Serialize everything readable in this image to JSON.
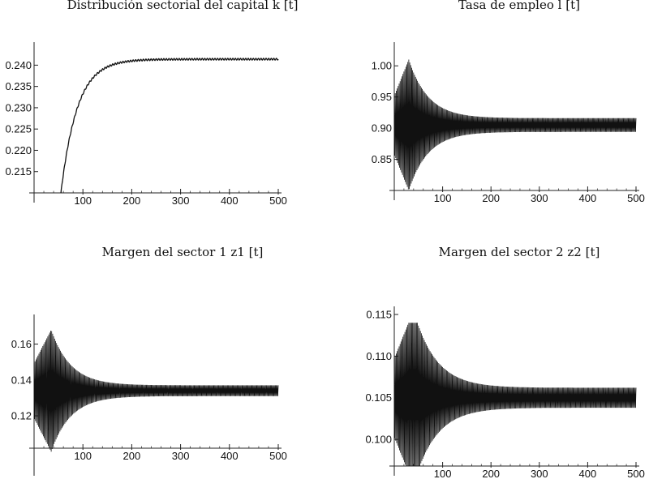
{
  "chart_data": [
    {
      "type": "line",
      "title": "Distribución sectorial del capital k [t]",
      "xlabel": "",
      "ylabel": "",
      "xlim": [
        0,
        500
      ],
      "ylim": [
        0.21,
        0.2435
      ],
      "xticks": [
        100,
        200,
        300,
        400,
        500
      ],
      "yticks": [
        0.215,
        0.22,
        0.225,
        0.23,
        0.235,
        0.24
      ],
      "ytick_labels": [
        "0.215",
        "0.220",
        "0.225",
        "0.230",
        "0.235",
        "0.240"
      ],
      "grid": false,
      "series": [
        {
          "kind": "rise",
          "x_start": 55,
          "y_start": 0.21,
          "y_end": 0.2414,
          "rate": 0.03,
          "ripple": 0.0002
        }
      ]
    },
    {
      "type": "line",
      "title": "Tasa de empleo l [t]",
      "xlabel": "",
      "ylabel": "",
      "xlim": [
        0,
        500
      ],
      "ylim": [
        0.8,
        1.025
      ],
      "xticks": [
        100,
        200,
        300,
        400,
        500
      ],
      "yticks": [
        0.85,
        0.9,
        0.95,
        1.0
      ],
      "ytick_labels": [
        "0.85",
        "0.90",
        "0.95",
        "1.00"
      ],
      "grid": false,
      "series": [
        {
          "kind": "oscillation",
          "center": 0.905,
          "amp_peak": 0.105,
          "amp_final": 0.011,
          "peak_x": 30,
          "decay": 0.025
        }
      ]
    },
    {
      "type": "line",
      "title": "Margen del sector 1 z1 [t]",
      "xlabel": "",
      "ylabel": "",
      "xlim": [
        0,
        500
      ],
      "ylim": [
        0.092,
        0.172
      ],
      "xticks": [
        100,
        200,
        300,
        400,
        500
      ],
      "yticks": [
        0.12,
        0.14,
        0.16
      ],
      "ytick_labels": [
        "0.12",
        "0.14",
        "0.16"
      ],
      "grid": false,
      "series": [
        {
          "kind": "oscillation",
          "center": 0.134,
          "amp_peak": 0.034,
          "amp_final": 0.003,
          "peak_x": 35,
          "decay": 0.025
        }
      ]
    },
    {
      "type": "line",
      "title": "Margen del sector 2 z2 [t]",
      "xlabel": "",
      "ylabel": "",
      "xlim": [
        0,
        500
      ],
      "ylim": [
        0.0968,
        0.115
      ],
      "xticks": [
        100,
        200,
        300,
        400,
        500
      ],
      "yticks": [
        0.1,
        0.105,
        0.11,
        0.115
      ],
      "ytick_labels": [
        "0.100",
        "0.105",
        "0.110",
        "0.115"
      ],
      "grid": false,
      "series": [
        {
          "kind": "oscillation",
          "center": 0.105,
          "amp_peak": 0.0105,
          "amp_final": 0.0012,
          "peak_x": 40,
          "decay": 0.022,
          "clip_top": 0.114
        }
      ]
    }
  ]
}
